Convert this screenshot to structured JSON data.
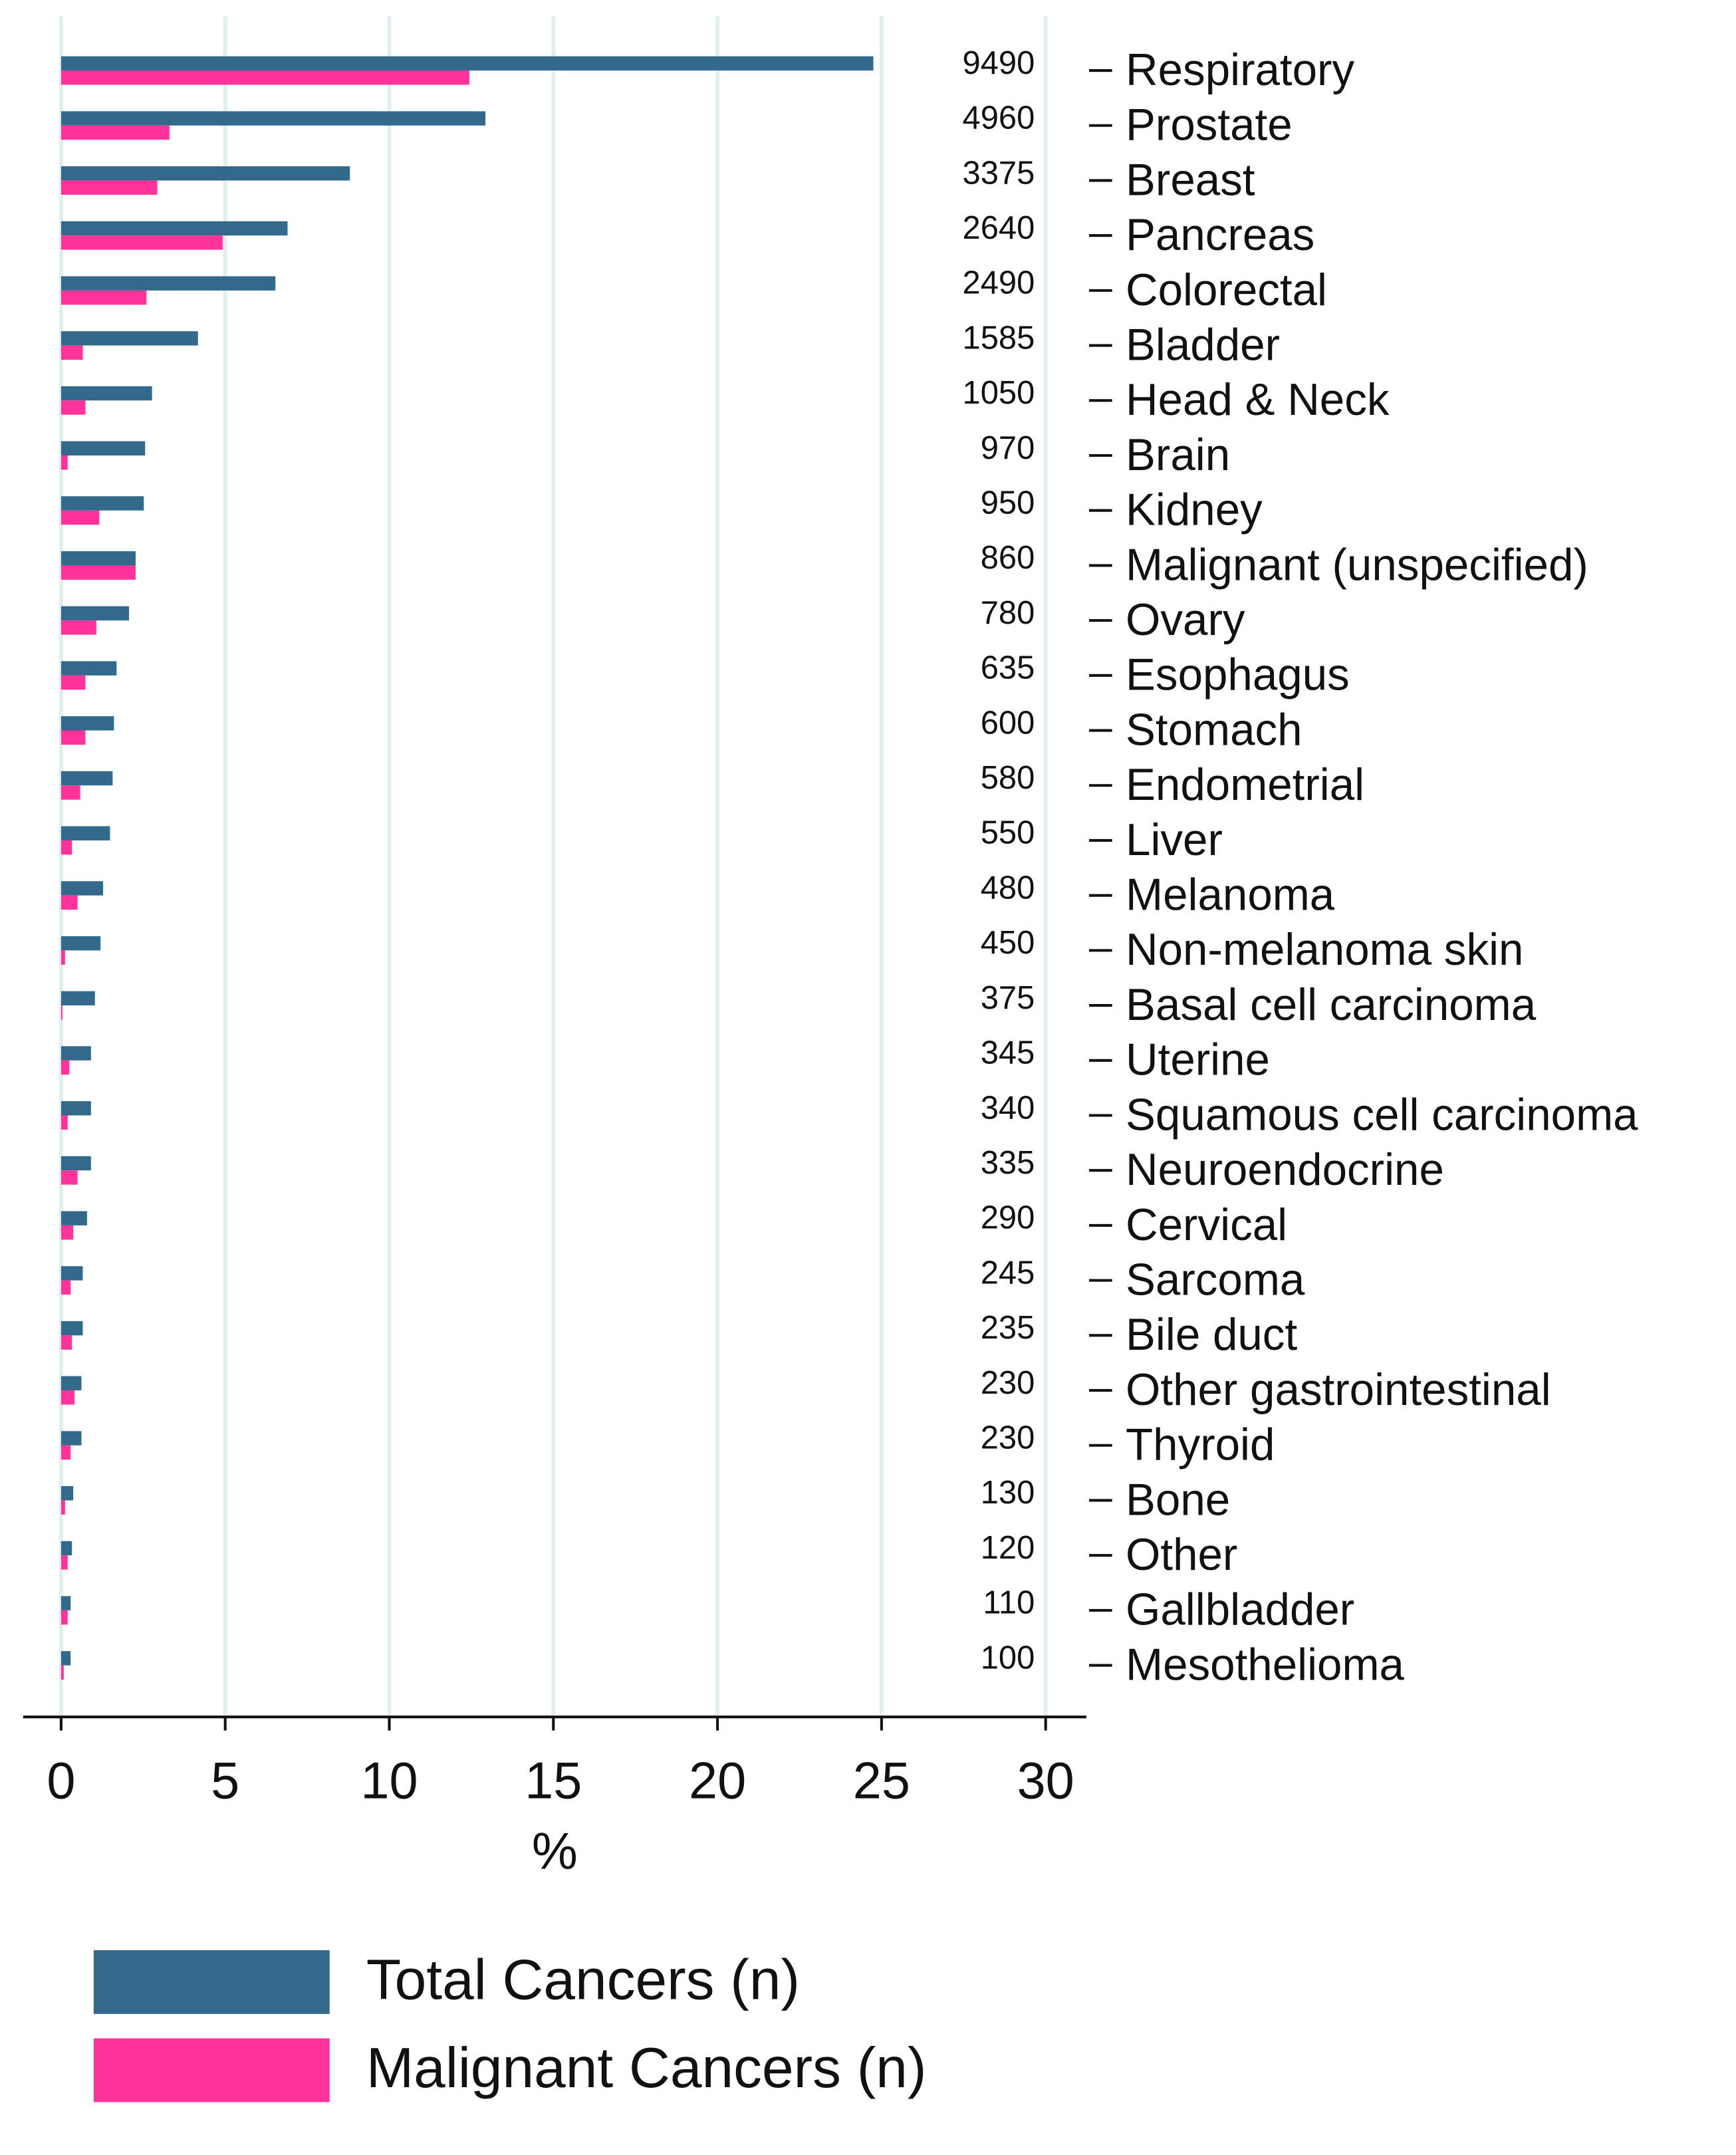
{
  "chart_data": {
    "type": "hbar",
    "xlabel": "%",
    "xlim": [
      0,
      30
    ],
    "xticks": [
      0,
      5,
      10,
      15,
      20,
      25,
      30
    ],
    "grid": true,
    "categories": [
      "Respiratory",
      "Prostate",
      "Breast",
      "Pancreas",
      "Colorectal",
      "Bladder",
      "Head & Neck",
      "Brain",
      "Kidney",
      "Malignant (unspecified)",
      "Ovary",
      "Esophagus",
      "Stomach",
      "Endometrial",
      "Liver",
      "Melanoma",
      "Non-melanoma skin",
      "Basal cell carcinoma",
      "Uterine",
      "Squamous cell carcinoma",
      "Neuroendocrine",
      "Cervical",
      "Sarcoma",
      "Bile duct",
      "Other gastrointestinal",
      "Thyroid",
      "Bone",
      "Other",
      "Gallbladder",
      "Mesothelioma"
    ],
    "counts": [
      9490,
      4960,
      3375,
      2640,
      2490,
      1585,
      1050,
      970,
      950,
      860,
      780,
      635,
      600,
      580,
      550,
      480,
      450,
      375,
      345,
      340,
      335,
      290,
      245,
      235,
      230,
      230,
      130,
      120,
      110,
      100
    ],
    "series": [
      {
        "name": "Total Cancers (n)",
        "color": "#336a8c",
        "values": [
          24.75,
          12.93,
          8.8,
          6.9,
          6.53,
          4.17,
          2.77,
          2.56,
          2.52,
          2.27,
          2.07,
          1.69,
          1.61,
          1.57,
          1.49,
          1.28,
          1.2,
          1.03,
          0.91,
          0.91,
          0.91,
          0.79,
          0.66,
          0.66,
          0.62,
          0.62,
          0.37,
          0.33,
          0.29,
          0.29
        ]
      },
      {
        "name": "Malignant Cancers (n)",
        "color": "#ff3399",
        "values": [
          12.44,
          3.3,
          2.93,
          4.92,
          2.6,
          0.66,
          0.74,
          0.2,
          1.16,
          2.27,
          1.07,
          0.74,
          0.74,
          0.58,
          0.33,
          0.5,
          0.12,
          0.04,
          0.25,
          0.2,
          0.5,
          0.37,
          0.29,
          0.33,
          0.41,
          0.29,
          0.12,
          0.2,
          0.2,
          0.08
        ]
      }
    ]
  }
}
